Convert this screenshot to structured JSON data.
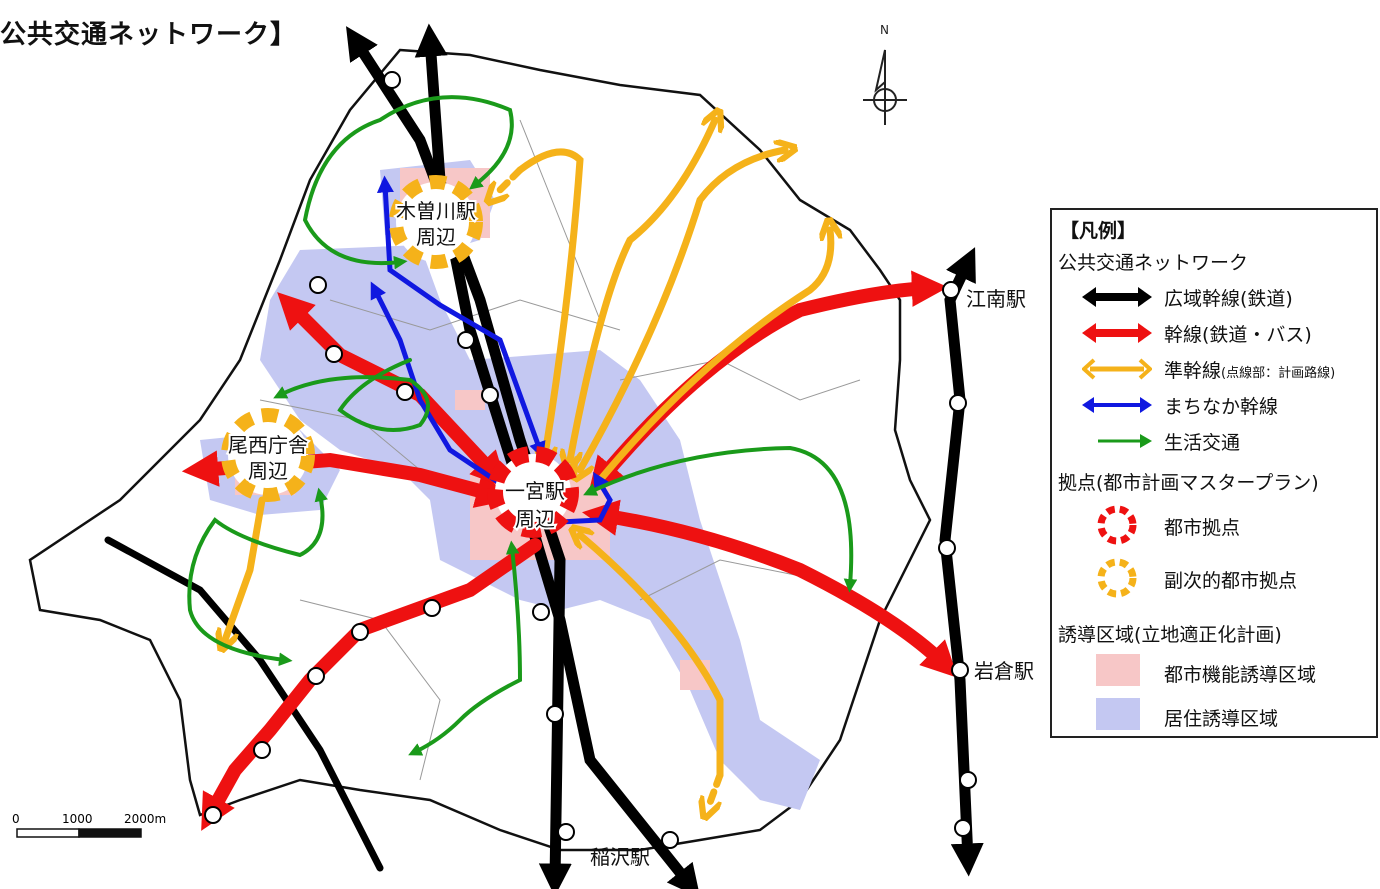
{
  "title": "公共交通ネットワーク】",
  "north": "N",
  "scale": {
    "t0": "0",
    "t1": "1000",
    "t2": "2000m"
  },
  "hubs": {
    "ichinomiya": [
      "一宮駅",
      "周辺"
    ],
    "kisogawa": [
      "木曽川駅",
      "周辺"
    ],
    "bisai": [
      "尾西庁舎",
      "周辺"
    ]
  },
  "stations": {
    "konan": "江南駅",
    "iwakura": "岩倉駅",
    "inazawa": "稲沢駅"
  },
  "legend": {
    "heading": "【凡例】",
    "network_title": "公共交通ネットワーク",
    "lines": [
      {
        "label": "広域幹線(鉄道)",
        "color": "#000000"
      },
      {
        "label": "幹線(鉄道・バス)",
        "color": "#ee1111"
      },
      {
        "label": "準幹線",
        "note": "(点線部：計画路線)",
        "color": "#f5b21a"
      },
      {
        "label": "まちなか幹線",
        "color": "#1018e0"
      },
      {
        "label": "生活交通",
        "color": "#1a9a1a"
      }
    ],
    "hub_title": "拠点(都市計画マスタープラン)",
    "hubs": [
      {
        "label": "都市拠点",
        "color": "#ee1111"
      },
      {
        "label": "副次的都市拠点",
        "color": "#f5b21a"
      }
    ],
    "zone_title": "誘導区域(立地適正化計画)",
    "zones": [
      {
        "label": "都市機能誘導区域",
        "color": "#f7c7c7"
      },
      {
        "label": "居住誘導区域",
        "color": "#c4c8f2"
      }
    ]
  }
}
